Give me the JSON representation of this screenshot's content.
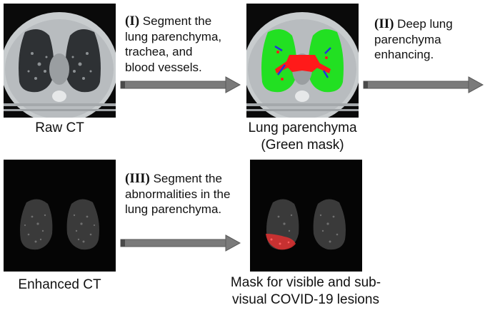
{
  "images": {
    "raw_ct": {
      "caption": "Raw CT"
    },
    "lung_parenchyma": {
      "caption_lines": [
        "Lung parenchyma",
        "(Green mask)"
      ],
      "mask_color": "#22e022",
      "trachea_color": "#ff1a1a",
      "vessel_color": "#2233dd"
    },
    "enhanced_ct": {
      "caption": "Enhanced CT"
    },
    "lesion_mask": {
      "caption_lines": [
        "Mask for visible and sub-",
        "visual COVID-19 lesions"
      ],
      "lesion_color": "#e03030"
    }
  },
  "steps": [
    {
      "number": "(I)",
      "lines": [
        " Segment the",
        "lung parenchyma,",
        "trachea, and",
        "blood vessels."
      ]
    },
    {
      "number": "(II)",
      "lines": [
        " Deep lung",
        "parenchyma",
        "enhancing."
      ]
    },
    {
      "number": "(III)",
      "lines": [
        " Segment the",
        "abnormalities in the",
        "lung parenchyma."
      ]
    }
  ],
  "arrow_color": "#707070"
}
